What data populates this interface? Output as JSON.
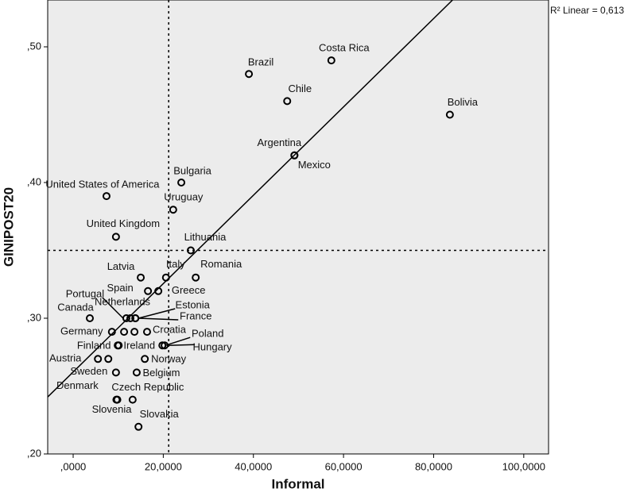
{
  "chart_data": {
    "type": "scatter",
    "x_label": "Informal",
    "y_label": "GINIPOST20",
    "annotation": "R² Linear = 0,613",
    "labels": [
      "Brazil",
      "Costa Rica",
      "Chile",
      "Bolivia",
      "Argentina",
      "Mexico",
      "Bulgaria",
      "United States of America",
      "Uruguay",
      "United Kingdom",
      "Lithuania",
      "Latvia",
      "Italy",
      "Romania",
      "Spain",
      "Greece",
      "Canada",
      "Portugal",
      "Netherlands",
      "Estonia",
      "France",
      "Germany",
      null,
      null,
      "Croatia",
      "Finland",
      "Ireland",
      "Poland",
      "Hungary",
      "Austria",
      null,
      "Norway",
      "Sweden",
      "Belgium",
      "Denmark",
      "Czech Republic",
      "Slovenia",
      "Slovakia"
    ],
    "x": [
      39.0,
      57.3,
      47.5,
      83.6,
      49.1,
      49.1,
      24.0,
      7.4,
      22.2,
      9.5,
      26.1,
      15.0,
      20.6,
      27.2,
      16.6,
      18.9,
      3.7,
      11.8,
      12.7,
      13.8,
      13.8,
      8.6,
      11.3,
      13.6,
      16.4,
      9.9,
      10.1,
      19.8,
      20.3,
      5.5,
      7.8,
      15.9,
      9.5,
      14.1,
      9.6,
      13.2,
      9.8,
      14.5
    ],
    "values": [
      0.48,
      0.49,
      0.46,
      0.45,
      0.42,
      0.42,
      0.4,
      0.39,
      0.38,
      0.36,
      0.35,
      0.33,
      0.33,
      0.33,
      0.32,
      0.32,
      0.3,
      0.3,
      0.3,
      0.3,
      0.3,
      0.29,
      0.29,
      0.29,
      0.29,
      0.28,
      0.28,
      0.28,
      0.28,
      0.27,
      0.27,
      0.27,
      0.26,
      0.26,
      0.24,
      0.24,
      0.24,
      0.22
    ],
    "xlim": [
      -5.65,
      105.5
    ],
    "ylim": [
      0.2,
      0.5345
    ],
    "xticks": [
      {
        "value": 0,
        "label": ",0000"
      },
      {
        "value": 20,
        "label": "20,0000"
      },
      {
        "value": 40,
        "label": "40,0000"
      },
      {
        "value": 60,
        "label": "60,0000"
      },
      {
        "value": 80,
        "label": "80,0000"
      },
      {
        "value": 100,
        "label": "100,0000"
      }
    ],
    "yticks": [
      {
        "value": 0.2,
        "label": ",20"
      },
      {
        "value": 0.3,
        "label": ",30"
      },
      {
        "value": 0.4,
        "label": ",40"
      },
      {
        "value": 0.5,
        "label": ",50"
      }
    ],
    "fit_line": {
      "x": [
        -5.65,
        84.2
      ],
      "y": [
        0.242,
        0.5345
      ]
    },
    "reference_lines": {
      "x": 21.2,
      "y": 0.35
    },
    "plot_color": "#ececec",
    "marker_color": "#000000"
  }
}
